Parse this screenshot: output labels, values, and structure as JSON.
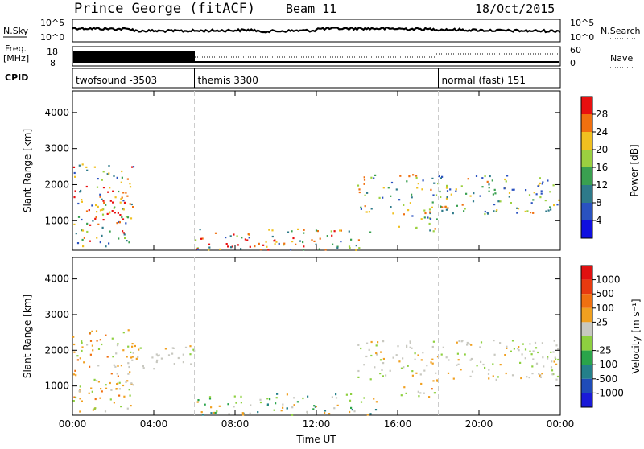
{
  "header": {
    "station": "Prince George (fitACF)",
    "beam": "Beam 11",
    "date": "18/Oct/2015"
  },
  "panels": {
    "nsky": {
      "label": "N.Sky",
      "right_label": "N.Search",
      "tick_top": "10^5",
      "tick_bottom": "10^0",
      "rtick_top": "10^5",
      "rtick_bottom": "10^0"
    },
    "freq": {
      "label_line1": "Freq.",
      "label_line2": "[MHz]",
      "right_label": "Nave",
      "tick_top": "18",
      "tick_bottom": "8",
      "rtick_top": "60",
      "rtick_bottom": "0"
    },
    "cpid": {
      "label": "CPID",
      "segments": [
        {
          "name": "twofsound -3503",
          "start": 0,
          "end": 6
        },
        {
          "name": "themis 3300",
          "start": 6,
          "end": 18
        },
        {
          "name": "normal (fast) 151",
          "start": 18,
          "end": 24
        }
      ]
    }
  },
  "colors": {
    "power": [
      "#1010e0",
      "#2a52c0",
      "#2e7a8a",
      "#3aa050",
      "#9bd040",
      "#f0c020",
      "#f07010",
      "#e81010"
    ],
    "velocity": [
      "#1a1ad8",
      "#1f4cb8",
      "#24808a",
      "#2aa44a",
      "#8ed040",
      "#c8c8c0",
      "#f0a020",
      "#f07010",
      "#e83a10",
      "#e01010"
    ],
    "grey_velocity": "#c8c8c0"
  },
  "chart_data": [
    {
      "type": "heatmap",
      "name": "power",
      "xlabel": "",
      "ylabel": "Slant Range [km]",
      "xlim": [
        0,
        24
      ],
      "ylim": [
        180,
        4600
      ],
      "yticks": [
        1000,
        2000,
        3000,
        4000
      ],
      "colorbar": {
        "label": "Power [dB]",
        "ticks": [
          "28",
          "24",
          "20",
          "16",
          "12",
          "8",
          "4"
        ],
        "range": [
          0,
          32
        ]
      },
      "scatter_regions": [
        {
          "t0": 0.0,
          "t1": 3.0,
          "r0": 300,
          "r1": 2600,
          "level": "strong"
        },
        {
          "t0": 1.0,
          "t1": 3.0,
          "r0": 900,
          "r1": 1700,
          "level": "red"
        },
        {
          "t0": 6.0,
          "t1": 15.0,
          "r0": 200,
          "r1": 800,
          "level": "strong"
        },
        {
          "t0": 8.0,
          "t1": 10.0,
          "r0": 200,
          "r1": 500,
          "level": "red"
        },
        {
          "t0": 14.0,
          "t1": 24.0,
          "r0": 1200,
          "r1": 2300,
          "level": "medium"
        },
        {
          "t0": 16.0,
          "t1": 18.0,
          "r0": 700,
          "r1": 1200,
          "level": "medium"
        }
      ]
    },
    {
      "type": "heatmap",
      "name": "velocity",
      "xlabel": "Time UT",
      "ylabel": "Slant Range [km]",
      "xlim": [
        0,
        24
      ],
      "ylim": [
        180,
        4600
      ],
      "xticks": [
        "00:00",
        "04:00",
        "08:00",
        "12:00",
        "16:00",
        "20:00",
        "00:00"
      ],
      "yticks": [
        1000,
        2000,
        3000,
        4000
      ],
      "colorbar": {
        "label": "Velocity [m s⁻¹]",
        "ticks": [
          "1000",
          "500",
          "100",
          "25",
          "-25",
          "-100",
          "-500",
          "-1000"
        ]
      },
      "scatter_regions": [
        {
          "t0": 0.0,
          "t1": 3.0,
          "r0": 300,
          "r1": 2600,
          "level": "orange"
        },
        {
          "t0": 2.0,
          "t1": 6.0,
          "r0": 1500,
          "r1": 2200,
          "level": "grey"
        },
        {
          "t0": 6.0,
          "t1": 15.0,
          "r0": 200,
          "r1": 800,
          "level": "mixed"
        },
        {
          "t0": 14.0,
          "t1": 24.0,
          "r0": 1200,
          "r1": 2300,
          "level": "grey"
        },
        {
          "t0": 16.0,
          "t1": 18.0,
          "r0": 700,
          "r1": 1200,
          "level": "orange"
        }
      ]
    }
  ]
}
